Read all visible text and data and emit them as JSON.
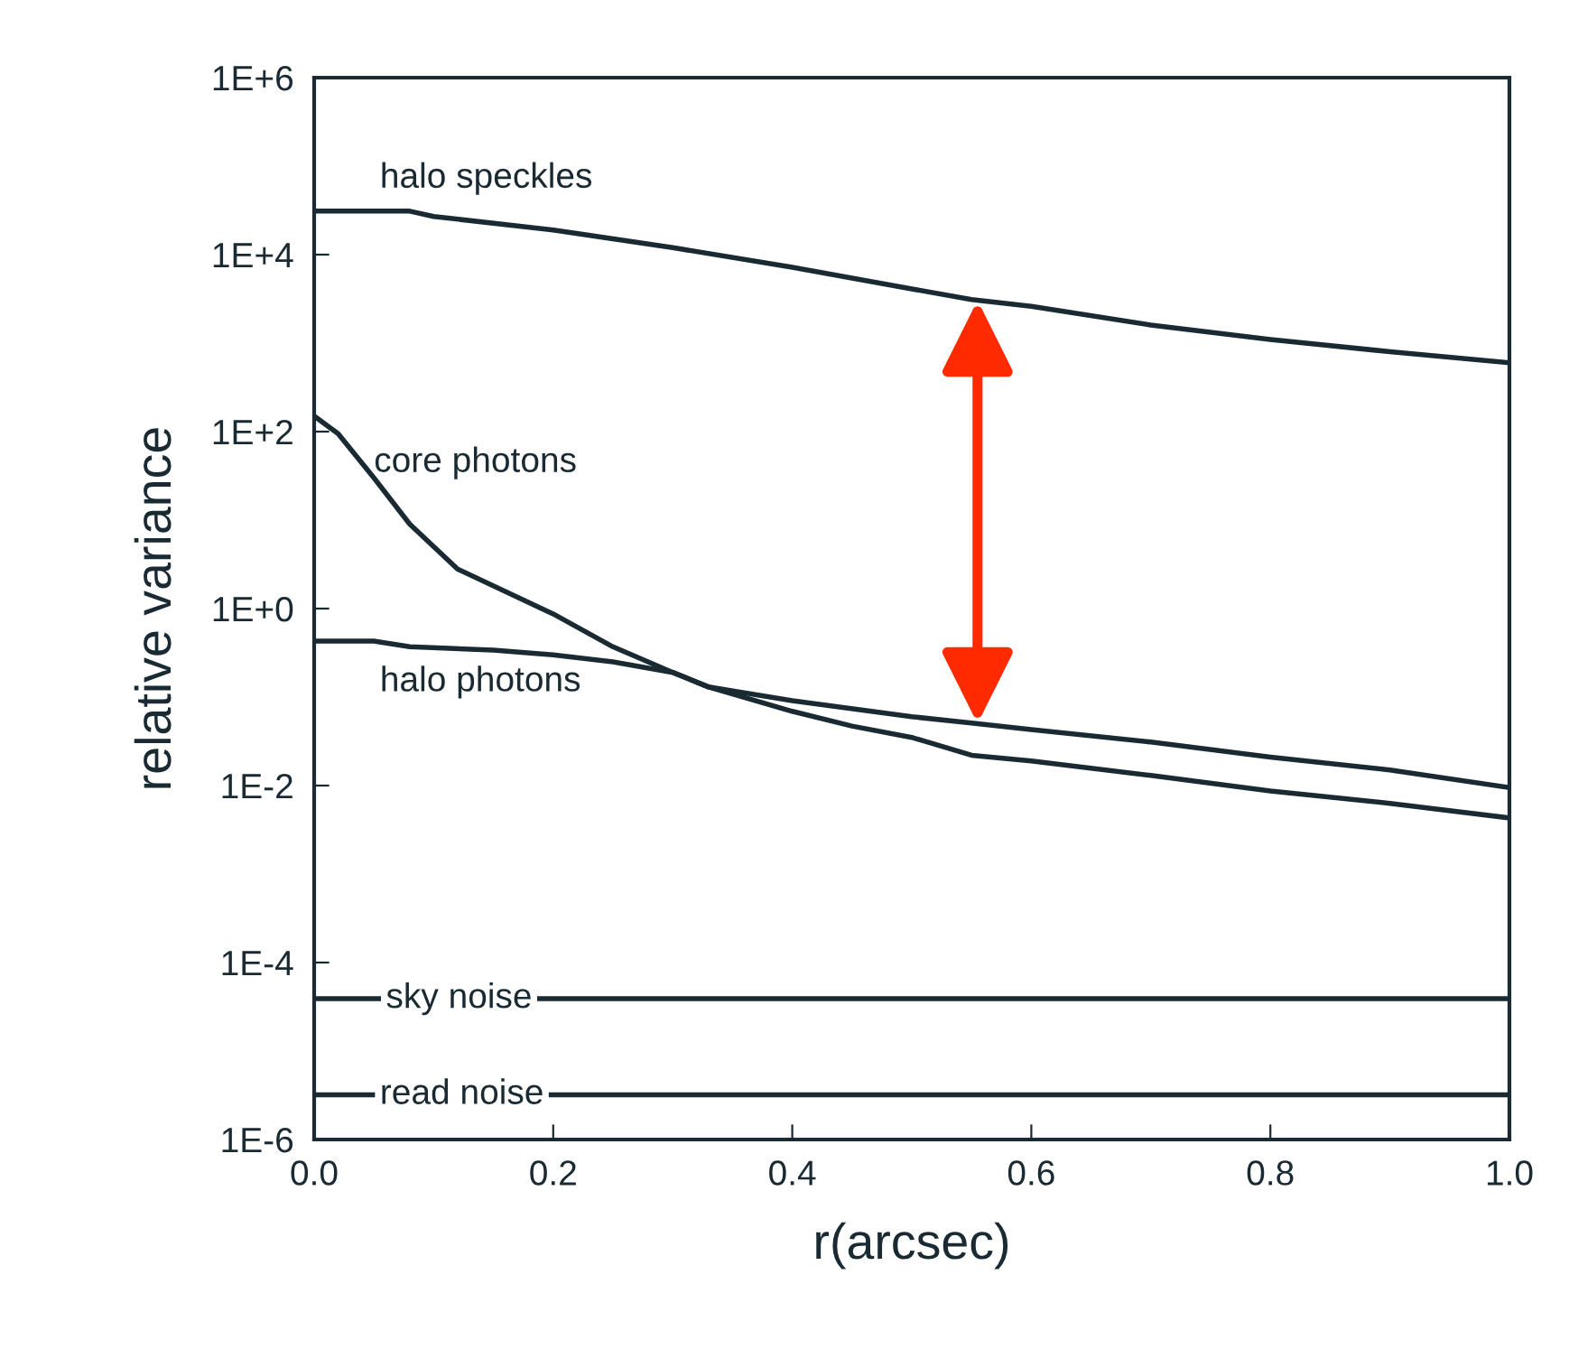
{
  "chart_data": {
    "type": "line",
    "xlabel": "r(arcsec)",
    "ylabel": "relative variance",
    "log": "y",
    "grid": false,
    "legend": false,
    "marker": "none",
    "line_style": "solid",
    "xlim": [
      0,
      1
    ],
    "xticks": [
      {
        "value": 0,
        "label": "0.0"
      },
      {
        "value": 0.2,
        "label": "0.2"
      },
      {
        "value": 0.4,
        "label": "0.4"
      },
      {
        "value": 0.6,
        "label": "0.6"
      },
      {
        "value": 0.8,
        "label": "0.8"
      },
      {
        "value": 1,
        "label": "1.0"
      }
    ],
    "ylim": [
      1e-06,
      1000000.0
    ],
    "yticks": [
      {
        "value": 1e-06,
        "label": "1E-6"
      },
      {
        "value": 0.0001,
        "label": "1E-4"
      },
      {
        "value": 0.01,
        "label": "1E-2"
      },
      {
        "value": 1,
        "label": "1E+0"
      },
      {
        "value": 100,
        "label": "1E+2"
      },
      {
        "value": 10000,
        "label": "1E+4"
      },
      {
        "value": 1000000,
        "label": "1E+6"
      }
    ],
    "series": [
      {
        "name": "halo speckles",
        "color": "#1a2a33",
        "x": [
          0,
          0.08,
          0.1,
          0.2,
          0.3,
          0.4,
          0.5,
          0.55,
          0.6,
          0.7,
          0.8,
          0.9,
          1.0
        ],
        "values": [
          31000,
          31000,
          27000,
          19000,
          12000,
          7200,
          4100,
          3100,
          2600,
          1600,
          1100,
          800,
          600
        ]
      },
      {
        "name": "core photons",
        "color": "#1a2a33",
        "x": [
          0,
          0.02,
          0.05,
          0.08,
          0.12,
          0.2,
          0.25,
          0.3,
          0.33,
          0.4,
          0.45,
          0.5,
          0.55,
          0.6,
          0.7,
          0.8,
          0.9,
          1.0
        ],
        "values": [
          150,
          95,
          30,
          9,
          2.8,
          0.87,
          0.37,
          0.19,
          0.13,
          0.069,
          0.047,
          0.035,
          0.022,
          0.019,
          0.013,
          0.0087,
          0.0063,
          0.0043
        ]
      },
      {
        "name": "halo photons",
        "color": "#1a2a33",
        "x": [
          0,
          0.05,
          0.08,
          0.15,
          0.2,
          0.25,
          0.3,
          0.33,
          0.4,
          0.5,
          0.55,
          0.6,
          0.7,
          0.8,
          0.9,
          1.0
        ],
        "values": [
          0.43,
          0.43,
          0.37,
          0.34,
          0.3,
          0.25,
          0.19,
          0.13,
          0.091,
          0.06,
          0.051,
          0.043,
          0.031,
          0.021,
          0.015,
          0.0095
        ]
      },
      {
        "name": "sky noise",
        "color": "#1a2a33",
        "x": [
          0,
          1
        ],
        "values": [
          3.9e-05,
          3.9e-05
        ]
      },
      {
        "name": "read noise",
        "color": "#1a2a33",
        "x": [
          0,
          1
        ],
        "values": [
          3.2e-06,
          3.2e-06
        ]
      }
    ]
  }
}
